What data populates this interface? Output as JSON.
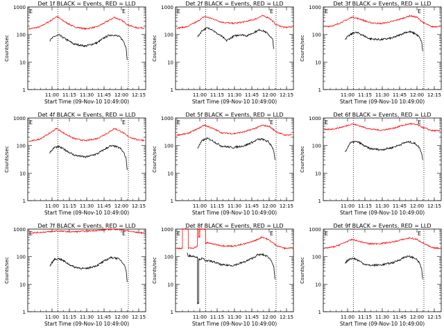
{
  "colors": {
    "events": "#000000",
    "lld": "#ff0000",
    "axis": "#000000",
    "background": "#ffffff"
  },
  "shared": {
    "ylabel": "Counts/sec",
    "xlabel": "Start Time (09-Nov-10 10:49:00)",
    "x_range_minutes": [
      -10,
      92
    ],
    "y_range": [
      1,
      1000
    ],
    "y_scale": "log",
    "x_ticks": [
      {
        "t": 11,
        "label": "11:00"
      },
      {
        "t": 26,
        "label": "11:15"
      },
      {
        "t": 41,
        "label": "11:30"
      },
      {
        "t": 56,
        "label": "11:45"
      },
      {
        "t": 71,
        "label": "12:00"
      },
      {
        "t": 86,
        "label": "12:15"
      }
    ],
    "y_ticks": [
      {
        "v": 1,
        "label": "1"
      },
      {
        "v": 10,
        "label": "10"
      },
      {
        "v": 100,
        "label": "100"
      },
      {
        "v": 1000,
        "label": "1000"
      }
    ],
    "marker_left_minute": 16,
    "marker_right_minute": 77,
    "marker_left_label": "E",
    "marker_right_label": "E"
  },
  "chart_data": [
    {
      "type": "line",
      "title": "Det 1f BLACK = Events, RED = LLD",
      "series": [
        {
          "color": "#ff0000",
          "x": [
            -9,
            0,
            9,
            15,
            22,
            30,
            40,
            50,
            60,
            65,
            71,
            77,
            84,
            91
          ],
          "values": [
            160,
            185,
            300,
            450,
            290,
            190,
            160,
            190,
            320,
            420,
            330,
            220,
            175,
            175
          ]
        },
        {
          "color": "#000000",
          "x": [
            9,
            13,
            17,
            21,
            25,
            30,
            40,
            50,
            57,
            61,
            65,
            70,
            73,
            75,
            76
          ],
          "values": [
            60,
            85,
            95,
            75,
            60,
            45,
            38,
            50,
            80,
            95,
            95,
            80,
            55,
            35,
            12
          ]
        }
      ]
    },
    {
      "type": "line",
      "title": "Det 2f BLACK = Events, RED = LLD",
      "series": [
        {
          "color": "#ff0000",
          "x": [
            -9,
            0,
            9,
            15,
            22,
            30,
            40,
            50,
            58,
            65,
            71,
            77,
            84,
            91
          ],
          "values": [
            170,
            190,
            300,
            450,
            370,
            280,
            250,
            290,
            350,
            480,
            400,
            230,
            180,
            190
          ]
        },
        {
          "color": "#000000",
          "x": [
            9,
            13,
            17,
            21,
            25,
            30,
            34,
            40,
            46,
            52,
            58,
            63,
            67,
            71,
            74,
            75
          ],
          "values": [
            80,
            140,
            170,
            160,
            115,
            85,
            60,
            85,
            100,
            90,
            120,
            150,
            130,
            95,
            65,
            30
          ]
        }
      ]
    },
    {
      "type": "line",
      "title": "Det 3f BLACK = Events, RED = LLD",
      "series": [
        {
          "color": "#ff0000",
          "x": [
            -9,
            0,
            9,
            15,
            22,
            30,
            40,
            50,
            60,
            65,
            71,
            77,
            84,
            91
          ],
          "values": [
            190,
            215,
            320,
            430,
            360,
            270,
            250,
            300,
            400,
            480,
            420,
            260,
            190,
            200
          ]
        },
        {
          "color": "#000000",
          "x": [
            9,
            13,
            17,
            21,
            25,
            30,
            40,
            50,
            57,
            61,
            65,
            70,
            73,
            75,
            76
          ],
          "values": [
            70,
            95,
            120,
            110,
            90,
            70,
            65,
            75,
            100,
            120,
            125,
            105,
            80,
            55,
            25
          ]
        }
      ]
    },
    {
      "type": "line",
      "title": "Det 4f BLACK = Events, RED = LLD",
      "series": [
        {
          "color": "#ff0000",
          "x": [
            -9,
            0,
            9,
            15,
            22,
            30,
            40,
            50,
            60,
            65,
            71,
            77,
            84,
            91
          ],
          "values": [
            140,
            170,
            280,
            420,
            270,
            180,
            150,
            180,
            300,
            420,
            320,
            210,
            165,
            155
          ]
        },
        {
          "color": "#000000",
          "x": [
            9,
            13,
            17,
            21,
            25,
            30,
            40,
            50,
            57,
            61,
            65,
            70,
            73,
            75,
            76
          ],
          "values": [
            55,
            85,
            90,
            75,
            60,
            45,
            38,
            50,
            75,
            95,
            95,
            80,
            55,
            35,
            13
          ]
        }
      ]
    },
    {
      "type": "line",
      "title": "Det 5f BLACK = Events, RED = LLD",
      "series": [
        {
          "color": "#ff0000",
          "x": [
            -9,
            0,
            9,
            15,
            22,
            30,
            40,
            50,
            60,
            65,
            71,
            77,
            84,
            91
          ],
          "values": [
            240,
            270,
            400,
            560,
            420,
            290,
            270,
            320,
            440,
            540,
            500,
            320,
            240,
            250
          ]
        },
        {
          "color": "#000000",
          "x": [
            9,
            13,
            17,
            21,
            25,
            30,
            40,
            50,
            57,
            61,
            65,
            70,
            73,
            75,
            76
          ],
          "values": [
            80,
            150,
            180,
            160,
            125,
            95,
            85,
            100,
            135,
            165,
            170,
            140,
            100,
            65,
            30
          ]
        }
      ]
    },
    {
      "type": "line",
      "title": "Det 6f BLACK = Events, RED = LLD",
      "series": [
        {
          "color": "#ff0000",
          "x": [
            -9,
            0,
            9,
            15,
            22,
            30,
            40,
            50,
            60,
            65,
            71,
            77,
            84,
            91
          ],
          "values": [
            370,
            410,
            500,
            620,
            510,
            400,
            360,
            420,
            560,
            620,
            570,
            440,
            350,
            340
          ]
        },
        {
          "color": "#000000",
          "x": [
            9,
            13,
            17,
            21,
            25,
            30,
            40,
            50,
            57,
            61,
            65,
            70,
            73,
            75,
            76
          ],
          "values": [
            60,
            120,
            140,
            130,
            100,
            78,
            70,
            85,
            110,
            130,
            135,
            115,
            85,
            55,
            30
          ]
        }
      ]
    },
    {
      "type": "line",
      "title": "Det 7f BLACK = Events, RED = LLD",
      "series": [
        {
          "color": "#ff0000",
          "x": [
            -9,
            0,
            9,
            15,
            22,
            30,
            40,
            50,
            60,
            65,
            71,
            77,
            84,
            91
          ],
          "values": [
            720,
            760,
            800,
            860,
            820,
            800,
            840,
            900,
            970,
            1000,
            940,
            850,
            760,
            720
          ]
        },
        {
          "color": "#000000",
          "x": [
            9,
            13,
            17,
            21,
            25,
            30,
            40,
            50,
            57,
            61,
            65,
            70,
            73,
            75,
            76
          ],
          "values": [
            45,
            80,
            85,
            70,
            55,
            42,
            36,
            48,
            72,
            90,
            92,
            78,
            55,
            35,
            12
          ]
        }
      ]
    },
    {
      "type": "line",
      "title": "Det 8f BLACK = Events, RED = LLD",
      "series": [
        {
          "color": "#ff0000",
          "x": [
            -9,
            -4,
            -4,
            0,
            1,
            1,
            6,
            9,
            9,
            10,
            10,
            11,
            11,
            16,
            16,
            18,
            20,
            24,
            30,
            40,
            50,
            60,
            65,
            70,
            77,
            84,
            91
          ],
          "values": [
            200,
            200,
            1000,
            1000,
            1000,
            200,
            210,
            240,
            1000,
            1000,
            520,
            520,
            1000,
            1000,
            300,
            320,
            300,
            280,
            250,
            240,
            290,
            400,
            520,
            420,
            260,
            200,
            210
          ]
        },
        {
          "color": "#000000",
          "x": [
            0,
            1,
            4,
            8,
            9,
            9,
            10,
            10,
            13,
            17,
            21,
            25,
            30,
            40,
            50,
            57,
            61,
            65,
            70,
            73,
            75,
            76
          ],
          "values": [
            140,
            110,
            105,
            100,
            95,
            2,
            2,
            80,
            85,
            70,
            68,
            60,
            50,
            48,
            65,
            90,
            115,
            120,
            100,
            70,
            45,
            15
          ]
        }
      ]
    },
    {
      "type": "line",
      "title": "Det 9f BLACK = Events, RED = LLD",
      "series": [
        {
          "color": "#ff0000",
          "x": [
            -9,
            0,
            9,
            15,
            22,
            30,
            40,
            50,
            60,
            65,
            71,
            77,
            84,
            91
          ],
          "values": [
            200,
            230,
            330,
            420,
            350,
            290,
            300,
            340,
            430,
            480,
            420,
            300,
            210,
            200
          ]
        },
        {
          "color": "#000000",
          "x": [
            9,
            13,
            17,
            21,
            25,
            30,
            40,
            50,
            57,
            61,
            65,
            70,
            73,
            75,
            76
          ],
          "values": [
            60,
            85,
            85,
            70,
            55,
            48,
            50,
            60,
            80,
            100,
            100,
            85,
            60,
            38,
            15
          ]
        }
      ]
    }
  ]
}
